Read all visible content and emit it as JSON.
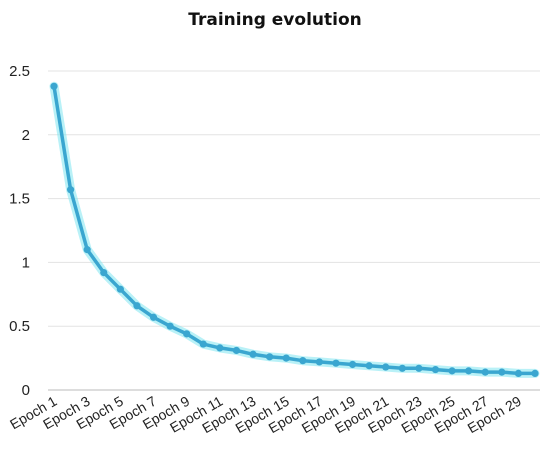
{
  "chart_data": {
    "type": "line",
    "title": "Training evolution",
    "xlabel": "",
    "ylabel": "",
    "ylim": [
      0,
      2.5
    ],
    "yticks": [
      "0",
      "0.5",
      "1",
      "1.5",
      "2",
      "2.5"
    ],
    "grid": true,
    "categories": [
      "Epoch 1",
      "Epoch 2",
      "Epoch 3",
      "Epoch 4",
      "Epoch 5",
      "Epoch 6",
      "Epoch 7",
      "Epoch 8",
      "Epoch 9",
      "Epoch 10",
      "Epoch 11",
      "Epoch 12",
      "Epoch 13",
      "Epoch 14",
      "Epoch 15",
      "Epoch 16",
      "Epoch 17",
      "Epoch 18",
      "Epoch 19",
      "Epoch 20",
      "Epoch 21",
      "Epoch 22",
      "Epoch 23",
      "Epoch 24",
      "Epoch 25",
      "Epoch 26",
      "Epoch 27",
      "Epoch 28",
      "Epoch 29",
      "Epoch 30"
    ],
    "shown_xticks": [
      "Epoch 1",
      "Epoch 3",
      "Epoch 5",
      "Epoch 7",
      "Epoch 9",
      "Epoch 11",
      "Epoch 13",
      "Epoch 15",
      "Epoch 17",
      "Epoch 19",
      "Epoch 21",
      "Epoch 23",
      "Epoch 25",
      "Epoch 27",
      "Epoch 29"
    ],
    "series": [
      {
        "values": [
          2.38,
          1.57,
          1.1,
          0.92,
          0.79,
          0.66,
          0.57,
          0.5,
          0.44,
          0.36,
          0.33,
          0.31,
          0.28,
          0.26,
          0.25,
          0.23,
          0.22,
          0.21,
          0.2,
          0.19,
          0.18,
          0.17,
          0.17,
          0.16,
          0.15,
          0.15,
          0.14,
          0.14,
          0.13,
          0.13
        ],
        "color": "#3aa6d0",
        "glow": "#7fe6f0"
      }
    ]
  }
}
